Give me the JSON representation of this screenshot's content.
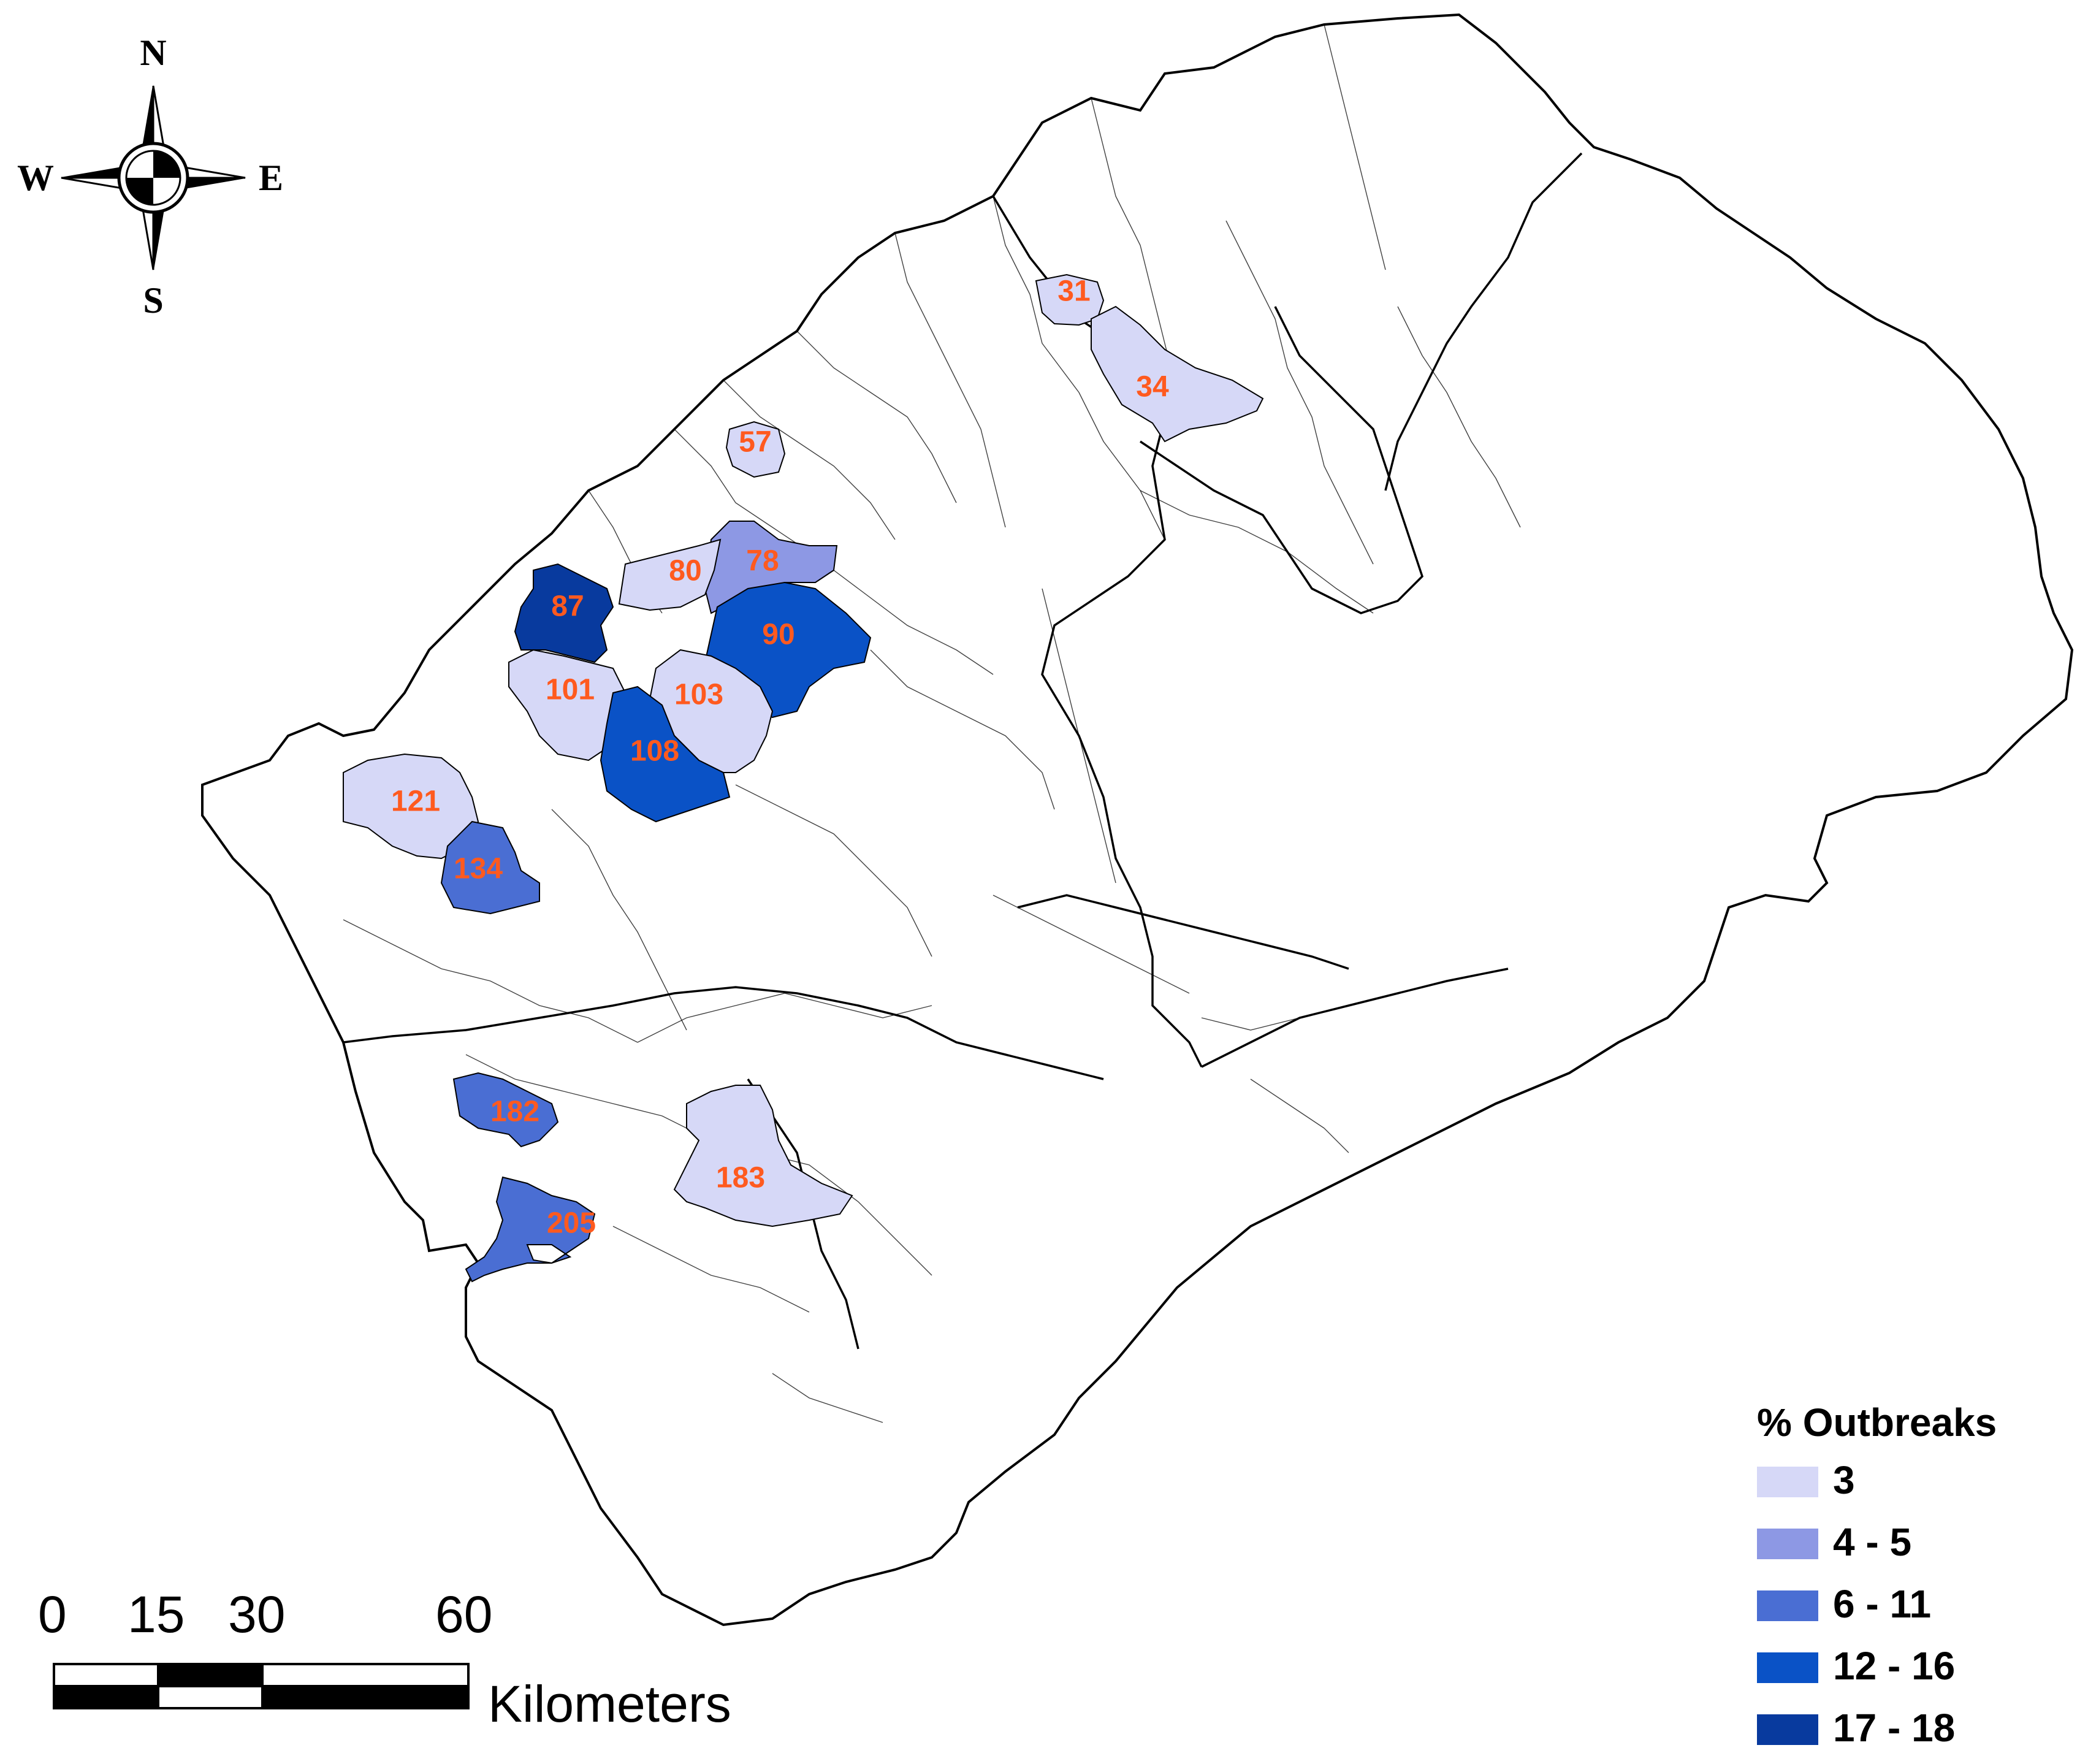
{
  "compass": {
    "north": "N",
    "south": "S",
    "east": "E",
    "west": "W"
  },
  "scale_bar": {
    "ticks": [
      "0",
      "15",
      "30",
      "60"
    ],
    "unit": "Kilometers"
  },
  "legend": {
    "title": "% Outbreaks",
    "classes": [
      {
        "label": "3",
        "color": "#d6d8f7"
      },
      {
        "label": "4 - 5",
        "color": "#8d98e4"
      },
      {
        "label": "6 - 11",
        "color": "#4a6ed3"
      },
      {
        "label": "12 - 16",
        "color": "#0a52c6"
      },
      {
        "label": "17 - 18",
        "color": "#083a9e"
      }
    ]
  },
  "regions": [
    {
      "id": "31",
      "class": 0
    },
    {
      "id": "34",
      "class": 0
    },
    {
      "id": "57",
      "class": 0
    },
    {
      "id": "78",
      "class": 1
    },
    {
      "id": "80",
      "class": 0
    },
    {
      "id": "87",
      "class": 4
    },
    {
      "id": "90",
      "class": 3
    },
    {
      "id": "101",
      "class": 0
    },
    {
      "id": "103",
      "class": 0
    },
    {
      "id": "108",
      "class": 3
    },
    {
      "id": "121",
      "class": 0
    },
    {
      "id": "134",
      "class": 2
    },
    {
      "id": "182",
      "class": 2
    },
    {
      "id": "183",
      "class": 0
    },
    {
      "id": "205",
      "class": 2
    }
  ],
  "label_color": "#ff5a1f"
}
